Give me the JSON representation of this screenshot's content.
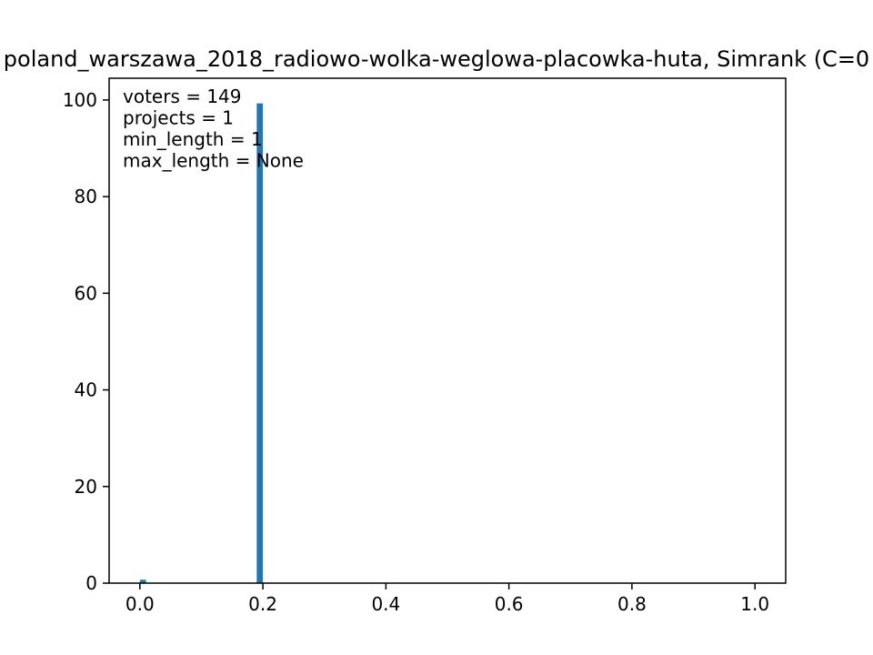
{
  "chart_data": {
    "type": "bar",
    "title": "poland_warszawa_2018_radiowo-wolka-weglowa-placowka-huta, Simrank (C=0",
    "xlabel": "",
    "ylabel": "",
    "xlim": [
      -0.05,
      1.05
    ],
    "ylim": [
      0,
      104.5
    ],
    "x_ticks": [
      "0.0",
      "0.2",
      "0.4",
      "0.6",
      "0.8",
      "1.0"
    ],
    "y_ticks": [
      "0",
      "20",
      "40",
      "60",
      "80",
      "100"
    ],
    "bin_width": 0.01,
    "bars": [
      {
        "x": 0.0,
        "value": 0.7
      },
      {
        "x": 0.19,
        "value": 99.3
      }
    ],
    "annotations": [
      "voters = 149",
      "projects = 1",
      "min_length = 1",
      "max_length = None"
    ],
    "bar_color": "#1f77b4",
    "grid": false
  }
}
